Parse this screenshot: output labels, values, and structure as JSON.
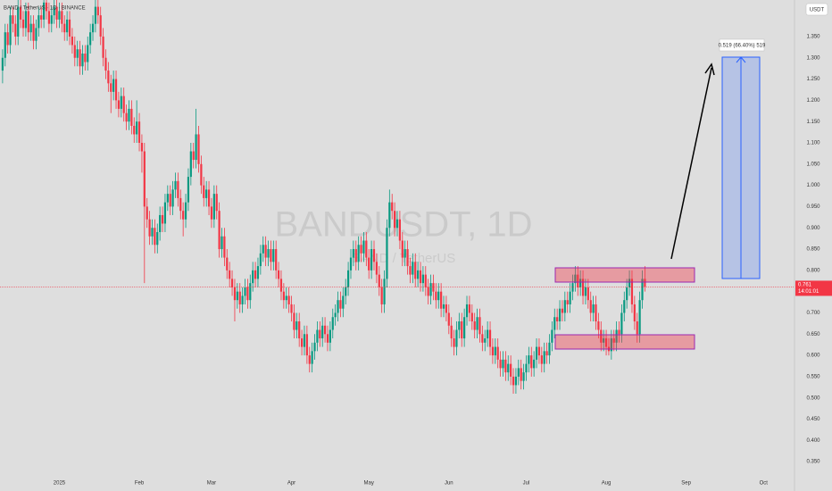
{
  "chart_data": {
    "type": "candlestick",
    "title": "BAND / TetherUS · 1D · BINANCE",
    "watermark": "BANDUSDT, 1D",
    "watermark_sub": "BAND / TetherUS",
    "currency": "USDT",
    "countdown": "14:01:01",
    "measure_label": "0.519 (66.40%) 519",
    "up_color": "#089981",
    "down_color": "#f23645",
    "open": [
      1.27,
      1.3,
      1.36,
      1.33,
      1.4,
      1.38,
      1.35,
      1.42,
      1.39,
      1.37,
      1.41,
      1.36,
      1.38,
      1.34,
      1.37,
      1.4,
      1.39,
      1.43,
      1.41,
      1.38,
      1.4,
      1.42,
      1.39,
      1.41,
      1.38,
      1.36,
      1.39,
      1.35,
      1.33,
      1.3,
      1.32,
      1.28,
      1.31,
      1.29,
      1.33,
      1.36,
      1.38,
      1.42,
      1.4,
      1.35,
      1.3,
      1.27,
      1.24,
      1.22,
      1.25,
      1.2,
      1.18,
      1.21,
      1.17,
      1.15,
      1.18,
      1.14,
      1.12,
      1.15,
      1.1,
      1.08,
      0.95,
      0.92,
      0.88,
      0.9,
      0.86,
      0.89,
      0.93,
      0.91,
      0.96,
      0.98,
      0.95,
      0.99,
      1.01,
      0.97,
      0.94,
      0.92,
      0.96,
      1.02,
      1.08,
      1.06,
      1.12,
      1.05,
      1.0,
      0.97,
      0.99,
      0.95,
      0.92,
      0.98,
      0.94,
      0.85,
      0.88,
      0.83,
      0.8,
      0.78,
      0.76,
      0.73,
      0.75,
      0.72,
      0.74,
      0.76,
      0.73,
      0.77,
      0.8,
      0.78,
      0.81,
      0.84,
      0.86,
      0.83,
      0.85,
      0.82,
      0.85,
      0.8,
      0.78,
      0.75,
      0.73,
      0.74,
      0.72,
      0.7,
      0.66,
      0.68,
      0.64,
      0.62,
      0.65,
      0.6,
      0.58,
      0.61,
      0.63,
      0.66,
      0.64,
      0.67,
      0.65,
      0.63,
      0.66,
      0.69,
      0.7,
      0.73,
      0.71,
      0.74,
      0.76,
      0.8,
      0.83,
      0.85,
      0.82,
      0.86,
      0.84,
      0.87,
      0.83,
      0.8,
      0.85,
      0.82,
      0.79,
      0.76,
      0.72,
      0.78,
      0.9,
      0.96,
      0.94,
      0.9,
      0.92,
      0.87,
      0.83,
      0.85,
      0.81,
      0.79,
      0.82,
      0.78,
      0.8,
      0.77,
      0.79,
      0.76,
      0.74,
      0.77,
      0.75,
      0.73,
      0.75,
      0.71,
      0.72,
      0.7,
      0.67,
      0.64,
      0.62,
      0.66,
      0.68,
      0.64,
      0.69,
      0.72,
      0.7,
      0.68,
      0.66,
      0.69,
      0.65,
      0.63,
      0.64,
      0.66,
      0.62,
      0.6,
      0.62,
      0.59,
      0.57,
      0.59,
      0.56,
      0.58,
      0.55,
      0.53,
      0.55,
      0.57,
      0.54,
      0.56,
      0.58,
      0.6,
      0.57,
      0.59,
      0.62,
      0.6,
      0.58,
      0.61,
      0.6,
      0.63,
      0.66,
      0.69,
      0.68,
      0.71,
      0.7,
      0.73,
      0.72,
      0.75,
      0.77,
      0.79,
      0.76,
      0.78,
      0.74,
      0.76,
      0.73,
      0.7,
      0.72,
      0.68,
      0.66,
      0.63,
      0.64,
      0.62,
      0.61,
      0.64,
      0.63,
      0.66,
      0.65,
      0.7,
      0.73,
      0.76,
      0.78,
      0.72,
      0.68,
      0.65,
      0.73,
      0.78
    ],
    "high": [
      1.32,
      1.38,
      1.38,
      1.42,
      1.42,
      1.4,
      1.44,
      1.44,
      1.41,
      1.43,
      1.43,
      1.4,
      1.4,
      1.39,
      1.42,
      1.42,
      1.45,
      1.45,
      1.43,
      1.42,
      1.44,
      1.44,
      1.43,
      1.43,
      1.4,
      1.41,
      1.41,
      1.37,
      1.35,
      1.34,
      1.34,
      1.33,
      1.33,
      1.35,
      1.38,
      1.4,
      1.44,
      1.44,
      1.42,
      1.37,
      1.32,
      1.29,
      1.26,
      1.27,
      1.27,
      1.22,
      1.23,
      1.23,
      1.19,
      1.2,
      1.2,
      1.16,
      1.2,
      1.17,
      1.12,
      1.1,
      0.97,
      0.94,
      0.92,
      0.92,
      0.91,
      0.95,
      0.95,
      0.98,
      1.0,
      1.0,
      1.01,
      1.03,
      1.03,
      0.99,
      0.96,
      0.98,
      1.04,
      1.1,
      1.1,
      1.18,
      1.14,
      1.07,
      1.02,
      1.01,
      1.01,
      0.97,
      1.0,
      1.0,
      0.96,
      0.9,
      0.9,
      0.85,
      0.82,
      0.8,
      0.78,
      0.77,
      0.77,
      0.76,
      0.78,
      0.78,
      0.79,
      0.82,
      0.82,
      0.83,
      0.86,
      0.88,
      0.88,
      0.87,
      0.87,
      0.87,
      0.87,
      0.82,
      0.8,
      0.77,
      0.76,
      0.76,
      0.74,
      0.72,
      0.7,
      0.7,
      0.66,
      0.67,
      0.67,
      0.62,
      0.63,
      0.65,
      0.68,
      0.68,
      0.69,
      0.69,
      0.67,
      0.68,
      0.71,
      0.72,
      0.75,
      0.75,
      0.76,
      0.78,
      0.82,
      0.85,
      0.87,
      0.87,
      0.88,
      0.88,
      0.89,
      0.89,
      0.85,
      0.87,
      0.87,
      0.84,
      0.81,
      0.78,
      0.8,
      0.92,
      0.99,
      0.98,
      0.96,
      0.94,
      0.94,
      0.89,
      0.87,
      0.87,
      0.83,
      0.84,
      0.84,
      0.82,
      0.82,
      0.81,
      0.81,
      0.78,
      0.79,
      0.79,
      0.77,
      0.77,
      0.77,
      0.74,
      0.74,
      0.72,
      0.69,
      0.66,
      0.68,
      0.7,
      0.7,
      0.71,
      0.74,
      0.74,
      0.72,
      0.7,
      0.71,
      0.71,
      0.67,
      0.66,
      0.68,
      0.68,
      0.64,
      0.64,
      0.64,
      0.61,
      0.61,
      0.61,
      0.6,
      0.6,
      0.57,
      0.57,
      0.59,
      0.59,
      0.58,
      0.6,
      0.62,
      0.62,
      0.61,
      0.64,
      0.64,
      0.62,
      0.63,
      0.63,
      0.65,
      0.68,
      0.71,
      0.71,
      0.73,
      0.73,
      0.75,
      0.75,
      0.77,
      0.79,
      0.81,
      0.81,
      0.8,
      0.8,
      0.78,
      0.78,
      0.75,
      0.74,
      0.74,
      0.7,
      0.68,
      0.66,
      0.66,
      0.64,
      0.66,
      0.66,
      0.68,
      0.68,
      0.72,
      0.75,
      0.78,
      0.8,
      0.8,
      0.74,
      0.7,
      0.75,
      0.8,
      0.81
    ],
    "low": [
      1.24,
      1.28,
      1.31,
      1.31,
      1.36,
      1.33,
      1.33,
      1.37,
      1.35,
      1.35,
      1.34,
      1.34,
      1.32,
      1.32,
      1.35,
      1.37,
      1.37,
      1.39,
      1.36,
      1.36,
      1.38,
      1.37,
      1.37,
      1.36,
      1.34,
      1.34,
      1.33,
      1.31,
      1.28,
      1.28,
      1.26,
      1.26,
      1.27,
      1.27,
      1.31,
      1.34,
      1.36,
      1.38,
      1.33,
      1.28,
      1.25,
      1.22,
      1.17,
      1.2,
      1.18,
      1.16,
      1.16,
      1.15,
      1.13,
      1.13,
      1.12,
      1.1,
      1.1,
      1.08,
      1.03,
      0.77,
      0.9,
      0.86,
      0.86,
      0.84,
      0.84,
      0.87,
      0.89,
      0.89,
      0.94,
      0.93,
      0.93,
      0.97,
      0.95,
      0.92,
      0.88,
      0.9,
      0.94,
      1.0,
      1.04,
      1.04,
      1.03,
      0.98,
      0.95,
      0.95,
      0.93,
      0.9,
      0.9,
      0.92,
      0.83,
      0.83,
      0.81,
      0.78,
      0.76,
      0.74,
      0.68,
      0.71,
      0.7,
      0.7,
      0.72,
      0.71,
      0.71,
      0.75,
      0.76,
      0.76,
      0.79,
      0.82,
      0.81,
      0.81,
      0.8,
      0.8,
      0.78,
      0.76,
      0.73,
      0.71,
      0.71,
      0.7,
      0.68,
      0.64,
      0.64,
      0.62,
      0.6,
      0.6,
      0.58,
      0.56,
      0.56,
      0.59,
      0.61,
      0.62,
      0.62,
      0.63,
      0.61,
      0.61,
      0.64,
      0.67,
      0.68,
      0.69,
      0.69,
      0.72,
      0.74,
      0.78,
      0.81,
      0.8,
      0.8,
      0.82,
      0.82,
      0.81,
      0.78,
      0.78,
      0.8,
      0.77,
      0.74,
      0.7,
      0.7,
      0.76,
      0.88,
      0.92,
      0.88,
      0.88,
      0.85,
      0.81,
      0.81,
      0.79,
      0.77,
      0.77,
      0.76,
      0.76,
      0.75,
      0.75,
      0.74,
      0.72,
      0.72,
      0.73,
      0.71,
      0.71,
      0.69,
      0.69,
      0.68,
      0.65,
      0.62,
      0.6,
      0.6,
      0.64,
      0.62,
      0.62,
      0.67,
      0.68,
      0.66,
      0.64,
      0.64,
      0.63,
      0.61,
      0.61,
      0.62,
      0.6,
      0.58,
      0.58,
      0.57,
      0.55,
      0.55,
      0.54,
      0.54,
      0.53,
      0.51,
      0.51,
      0.53,
      0.52,
      0.52,
      0.54,
      0.56,
      0.55,
      0.55,
      0.57,
      0.58,
      0.56,
      0.56,
      0.58,
      0.58,
      0.61,
      0.64,
      0.66,
      0.66,
      0.68,
      0.68,
      0.7,
      0.7,
      0.73,
      0.75,
      0.74,
      0.74,
      0.72,
      0.72,
      0.71,
      0.68,
      0.68,
      0.66,
      0.64,
      0.61,
      0.61,
      0.6,
      0.6,
      0.59,
      0.61,
      0.61,
      0.63,
      0.63,
      0.68,
      0.71,
      0.74,
      0.7,
      0.66,
      0.63,
      0.63,
      0.71,
      0.75
    ],
    "close": [
      1.3,
      1.36,
      1.33,
      1.4,
      1.38,
      1.35,
      1.42,
      1.39,
      1.37,
      1.41,
      1.36,
      1.38,
      1.34,
      1.37,
      1.4,
      1.39,
      1.43,
      1.41,
      1.38,
      1.4,
      1.42,
      1.39,
      1.41,
      1.38,
      1.36,
      1.39,
      1.35,
      1.33,
      1.3,
      1.32,
      1.28,
      1.31,
      1.29,
      1.33,
      1.36,
      1.38,
      1.42,
      1.4,
      1.35,
      1.3,
      1.27,
      1.24,
      1.22,
      1.25,
      1.2,
      1.18,
      1.21,
      1.17,
      1.15,
      1.18,
      1.14,
      1.12,
      1.15,
      1.1,
      1.08,
      0.95,
      0.92,
      0.88,
      0.9,
      0.86,
      0.89,
      0.93,
      0.91,
      0.96,
      0.98,
      0.95,
      0.99,
      1.01,
      0.97,
      0.94,
      0.92,
      0.96,
      1.02,
      1.08,
      1.06,
      1.12,
      1.05,
      1.0,
      0.97,
      0.99,
      0.95,
      0.92,
      0.98,
      0.94,
      0.85,
      0.88,
      0.83,
      0.8,
      0.78,
      0.76,
      0.73,
      0.75,
      0.72,
      0.74,
      0.76,
      0.73,
      0.77,
      0.8,
      0.78,
      0.81,
      0.84,
      0.86,
      0.83,
      0.85,
      0.82,
      0.85,
      0.8,
      0.78,
      0.75,
      0.73,
      0.74,
      0.72,
      0.7,
      0.66,
      0.68,
      0.64,
      0.62,
      0.65,
      0.6,
      0.58,
      0.61,
      0.63,
      0.66,
      0.64,
      0.67,
      0.65,
      0.63,
      0.66,
      0.69,
      0.7,
      0.73,
      0.71,
      0.74,
      0.76,
      0.8,
      0.83,
      0.85,
      0.82,
      0.86,
      0.84,
      0.87,
      0.83,
      0.8,
      0.85,
      0.82,
      0.79,
      0.76,
      0.72,
      0.78,
      0.9,
      0.96,
      0.94,
      0.9,
      0.92,
      0.87,
      0.83,
      0.85,
      0.81,
      0.79,
      0.82,
      0.78,
      0.8,
      0.77,
      0.79,
      0.76,
      0.74,
      0.77,
      0.75,
      0.73,
      0.75,
      0.71,
      0.72,
      0.7,
      0.67,
      0.64,
      0.62,
      0.66,
      0.68,
      0.64,
      0.69,
      0.72,
      0.7,
      0.68,
      0.66,
      0.69,
      0.65,
      0.63,
      0.64,
      0.66,
      0.62,
      0.6,
      0.62,
      0.59,
      0.57,
      0.59,
      0.56,
      0.58,
      0.55,
      0.53,
      0.55,
      0.57,
      0.54,
      0.56,
      0.58,
      0.6,
      0.57,
      0.59,
      0.62,
      0.6,
      0.58,
      0.61,
      0.6,
      0.63,
      0.66,
      0.69,
      0.68,
      0.71,
      0.7,
      0.73,
      0.72,
      0.75,
      0.77,
      0.79,
      0.76,
      0.78,
      0.74,
      0.76,
      0.73,
      0.7,
      0.72,
      0.68,
      0.66,
      0.63,
      0.64,
      0.62,
      0.61,
      0.64,
      0.63,
      0.66,
      0.65,
      0.7,
      0.73,
      0.76,
      0.78,
      0.72,
      0.68,
      0.65,
      0.73,
      0.78,
      0.761
    ],
    "xlim": [
      -1,
      307
    ],
    "xticks": [
      {
        "value": 22,
        "label": "2025"
      },
      {
        "value": 53,
        "label": "Feb"
      },
      {
        "value": 81,
        "label": "Mar"
      },
      {
        "value": 112,
        "label": "Apr"
      },
      {
        "value": 142,
        "label": "May"
      },
      {
        "value": 173,
        "label": "Jun"
      },
      {
        "value": 203,
        "label": "Jul"
      },
      {
        "value": 234,
        "label": "Aug"
      },
      {
        "value": 265,
        "label": "Sep"
      },
      {
        "value": 295,
        "label": "Oct"
      }
    ],
    "ylim": [
      0.323,
      1.436
    ],
    "yticks": [
      {
        "value": 0.35,
        "label": "0.350"
      },
      {
        "value": 0.4,
        "label": "0.400"
      },
      {
        "value": 0.45,
        "label": "0.450"
      },
      {
        "value": 0.5,
        "label": "0.500"
      },
      {
        "value": 0.55,
        "label": "0.550"
      },
      {
        "value": 0.6,
        "label": "0.600"
      },
      {
        "value": 0.65,
        "label": "0.650"
      },
      {
        "value": 0.7,
        "label": "0.700"
      },
      {
        "value": 0.75,
        "label": "0.750"
      },
      {
        "value": 0.8,
        "label": "0.800"
      },
      {
        "value": 0.85,
        "label": "0.850"
      },
      {
        "value": 0.9,
        "label": "0.900"
      },
      {
        "value": 0.95,
        "label": "0.950"
      },
      {
        "value": 1.0,
        "label": "1.000"
      },
      {
        "value": 1.05,
        "label": "1.050"
      },
      {
        "value": 1.1,
        "label": "1.100"
      },
      {
        "value": 1.15,
        "label": "1.150"
      },
      {
        "value": 1.2,
        "label": "1.200"
      },
      {
        "value": 1.25,
        "label": "1.250"
      },
      {
        "value": 1.3,
        "label": "1.300"
      },
      {
        "value": 1.35,
        "label": "1.350"
      }
    ]
  }
}
